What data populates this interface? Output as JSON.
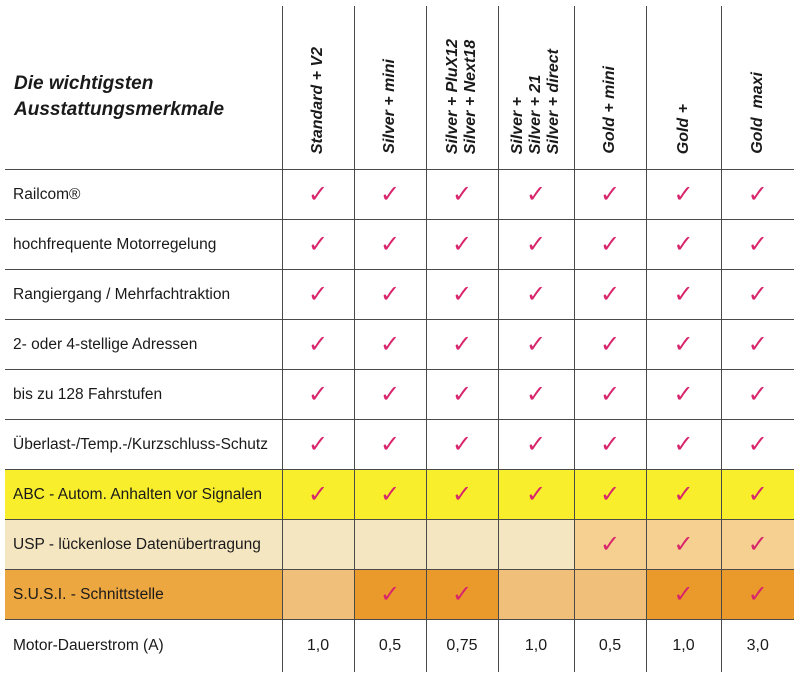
{
  "header": {
    "title_line1": "Die wichtigsten",
    "title_line2": "Ausstattungsmerkmale"
  },
  "columns": [
    "Standard + V2",
    "Silver + mini",
    "Silver + PluX12\nSilver + Next18",
    "Silver +\nSilver + 21\nSilver + direct",
    "Gold + mini",
    "Gold +",
    "Gold  maxi"
  ],
  "check_mark": "✓",
  "rows": [
    {
      "label": "Railcom®",
      "cells": [
        true,
        true,
        true,
        true,
        true,
        true,
        true
      ]
    },
    {
      "label": "hochfrequente Motorregelung",
      "cells": [
        true,
        true,
        true,
        true,
        true,
        true,
        true
      ]
    },
    {
      "label": "Rangiergang / Mehrfachtraktion",
      "cells": [
        true,
        true,
        true,
        true,
        true,
        true,
        true
      ]
    },
    {
      "label": "2- oder 4-stellige Adressen",
      "cells": [
        true,
        true,
        true,
        true,
        true,
        true,
        true
      ]
    },
    {
      "label": "bis zu 128 Fahrstufen",
      "cells": [
        true,
        true,
        true,
        true,
        true,
        true,
        true
      ]
    },
    {
      "label": "Überlast-/Temp.-/Kurzschluss-Schutz",
      "cells": [
        true,
        true,
        true,
        true,
        true,
        true,
        true
      ]
    },
    {
      "label": "ABC - Autom. Anhalten vor Signalen",
      "cells": [
        true,
        true,
        true,
        true,
        true,
        true,
        true
      ]
    },
    {
      "label": "USP - lückenlose Datenübertragung",
      "cells": [
        false,
        false,
        false,
        false,
        true,
        true,
        true
      ]
    },
    {
      "label": "S.U.S.I. - Schnittstelle",
      "cells": [
        false,
        true,
        true,
        false,
        false,
        true,
        true
      ]
    }
  ],
  "current_row": {
    "label": "Motor-Dauerstrom (A)",
    "values": [
      "1,0",
      "0,5",
      "0,75",
      "1,0",
      "0,5",
      "1,0",
      "3,0"
    ]
  },
  "colors": {
    "check": "#d8256b",
    "abc_row": "#f8ee2c",
    "usp_row": "#f5e6c2",
    "susi_row": "#f0c07a"
  }
}
